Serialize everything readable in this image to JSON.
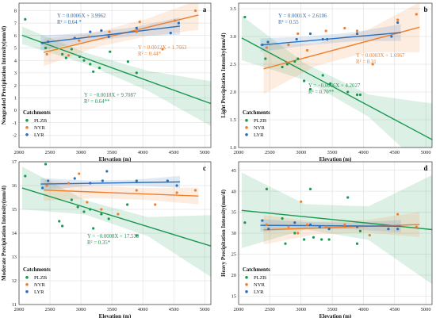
{
  "chart_data": [
    {
      "type": "scatter",
      "panel_label": "a",
      "xlabel": "Elevation (m)",
      "ylabel": "Nongraded Precipitation Intensity(mm/d)",
      "xlim": [
        2000,
        5100
      ],
      "ylim": [
        -3,
        8.6
      ],
      "xticks": [
        2000,
        2500,
        3000,
        3500,
        4000,
        4500,
        5000
      ],
      "yticks": [
        -2,
        -1,
        0,
        1,
        2,
        3,
        4,
        5,
        6,
        7,
        8
      ],
      "grid": true,
      "legend": {
        "title": "Catchments",
        "position": "bottom-left"
      },
      "series": [
        {
          "name": "PLZB",
          "color": "#1a9850",
          "points": [
            [
              2100,
              7.3
            ],
            [
              2430,
              5.0
            ],
            [
              2700,
              4.5
            ],
            [
              2760,
              4.2
            ],
            [
              2850,
              4.9
            ],
            [
              2980,
              4.3
            ],
            [
              3050,
              4.0
            ],
            [
              3150,
              3.7
            ],
            [
              3200,
              3.1
            ],
            [
              3300,
              3.4
            ],
            [
              3470,
              4.7
            ],
            [
              3760,
              3.9
            ],
            [
              3900,
              3.0
            ]
          ],
          "fit": {
            "slope": -0.0018,
            "intercept": 9.7087,
            "x": [
              2050,
              5100
            ],
            "band": [
              0.7,
              0.45,
              0.8,
              1.8
            ]
          },
          "equation": "Y = −0.0018X + 9.7087",
          "r2": "R² = 0.64**"
        },
        {
          "name": "NYR",
          "color": "#f07f2c",
          "points": [
            [
              2450,
              4.5
            ],
            [
              2800,
              4.4
            ],
            [
              2970,
              5.6
            ],
            [
              3130,
              5.9
            ],
            [
              3460,
              6.3
            ],
            [
              3900,
              6.3
            ],
            [
              3950,
              7.1
            ],
            [
              4320,
              4.9
            ],
            [
              4520,
              7.2
            ],
            [
              4850,
              8.0
            ]
          ],
          "fit": {
            "slope": 0.0012,
            "intercept": 1.7663,
            "x": [
              2400,
              4900
            ],
            "band": [
              1.1,
              0.6,
              0.7,
              1.2
            ]
          },
          "equation": "Y = 0.0012X + 1.7663",
          "r2": "R² = 0.44*"
        },
        {
          "name": "LYR",
          "color": "#2c6fbb",
          "points": [
            [
              2380,
              5.4
            ],
            [
              2470,
              5.5
            ],
            [
              2900,
              5.8
            ],
            [
              3150,
              6.3
            ],
            [
              3330,
              6.4
            ],
            [
              3450,
              5.9
            ],
            [
              3900,
              6.6
            ],
            [
              4450,
              6.2
            ],
            [
              4580,
              7.0
            ]
          ],
          "fit": {
            "slope": 0.0006,
            "intercept": 3.9962,
            "x": [
              2350,
              4600
            ],
            "band": [
              0.6,
              0.35,
              0.35,
              0.7
            ]
          },
          "equation": "Y = 0.0006X + 3.9962",
          "r2": "R² = 0.64 *"
        }
      ]
    },
    {
      "type": "scatter",
      "panel_label": "b",
      "xlabel": "Elevation (m)",
      "ylabel": "Light Precipitation Intensity(mm/d)",
      "xlim": [
        2000,
        5100
      ],
      "ylim": [
        1.0,
        3.6
      ],
      "xticks": [
        2000,
        2500,
        3000,
        3500,
        4000,
        4500,
        5000
      ],
      "yticks": [
        1.0,
        1.5,
        2.0,
        2.5,
        3.0,
        3.5
      ],
      "grid": true,
      "legend": {
        "title": "Catchments",
        "position": "bottom-left"
      },
      "series": [
        {
          "name": "PLZB",
          "color": "#1a9850",
          "points": [
            [
              2100,
              3.35
            ],
            [
              2430,
              2.6
            ],
            [
              2700,
              2.45
            ],
            [
              2780,
              2.5
            ],
            [
              2900,
              2.55
            ],
            [
              2950,
              2.6
            ],
            [
              3050,
              2.2
            ],
            [
              3150,
              2.05
            ],
            [
              3350,
              2.3
            ],
            [
              3470,
              2.15
            ],
            [
              3750,
              2.0
            ],
            [
              3900,
              1.95
            ],
            [
              3950,
              1.95
            ]
          ],
          "fit": {
            "slope": -0.0006,
            "intercept": 4.2027,
            "x": [
              2050,
              5100
            ],
            "band": [
              0.4,
              0.15,
              0.2,
              0.65
            ]
          },
          "equation": "Y = −0.0006X + 4.2027",
          "r2": "R² = 0.70**"
        },
        {
          "name": "NYR",
          "color": "#f07f2c",
          "points": [
            [
              2450,
              2.8
            ],
            [
              2800,
              2.85
            ],
            [
              2950,
              3.05
            ],
            [
              3100,
              2.75
            ],
            [
              3400,
              3.1
            ],
            [
              3700,
              3.15
            ],
            [
              3900,
              3.1
            ],
            [
              4150,
              2.5
            ],
            [
              4550,
              3.3
            ],
            [
              4850,
              3.4
            ]
          ],
          "fit": {
            "slope": 0.0003,
            "intercept": 1.6967,
            "x": [
              2400,
              4900
            ],
            "band": [
              0.45,
              0.2,
              0.2,
              0.45
            ]
          },
          "equation": "Y = 0.0003X + 1.6967",
          "r2": "R² = 0.31"
        },
        {
          "name": "LYR",
          "color": "#2c6fbb",
          "points": [
            [
              2380,
              2.85
            ],
            [
              2470,
              2.9
            ],
            [
              2930,
              2.95
            ],
            [
              3150,
              3.05
            ],
            [
              3350,
              2.95
            ],
            [
              3420,
              2.95
            ],
            [
              3900,
              3.05
            ],
            [
              4450,
              3.0
            ],
            [
              4550,
              3.25
            ]
          ],
          "fit": {
            "slope": 0.0001,
            "intercept": 2.6106,
            "x": [
              2350,
              4600
            ],
            "band": [
              0.12,
              0.08,
              0.08,
              0.15
            ]
          },
          "equation": "Y = 0.0001X + 2.6106",
          "r2": "R² = 0.55"
        }
      ]
    },
    {
      "type": "scatter",
      "panel_label": "c",
      "xlabel": "Elevation (m)",
      "ylabel": "Moderate Precipitation Intensity(mm/d)",
      "xlim": [
        2000,
        5100
      ],
      "ylim": [
        11,
        17
      ],
      "xticks": [
        2000,
        2500,
        3000,
        3500,
        4000,
        4500,
        5000
      ],
      "yticks": [
        11,
        12,
        13,
        14,
        15,
        16,
        17
      ],
      "grid": true,
      "legend": {
        "title": "Catchments",
        "position": "bottom-left"
      },
      "series": [
        {
          "name": "PLZB",
          "color": "#1a9850",
          "points": [
            [
              2100,
              16.4
            ],
            [
              2430,
              16.9
            ],
            [
              2650,
              14.5
            ],
            [
              2700,
              14.3
            ],
            [
              2850,
              15.4
            ],
            [
              2950,
              15.1
            ],
            [
              3050,
              14.9
            ],
            [
              3150,
              15.0
            ],
            [
              3200,
              14.2
            ],
            [
              3330,
              14.8
            ],
            [
              3450,
              14.6
            ],
            [
              3750,
              15.2
            ],
            [
              3900,
              13.9
            ]
          ],
          "fit": {
            "slope": -0.0008,
            "intercept": 17.539,
            "x": [
              2050,
              5100
            ],
            "band": [
              0.9,
              0.3,
              0.4,
              1.3
            ]
          },
          "equation": "Y = −0.0008X + 17.539",
          "r2": "R² = 0.35*"
        },
        {
          "name": "NYR",
          "color": "#f07f2c",
          "points": [
            [
              2450,
              16.0
            ],
            [
              2800,
              16.1
            ],
            [
              2970,
              16.5
            ],
            [
              3100,
              15.3
            ],
            [
              3330,
              15.0
            ],
            [
              3600,
              14.8
            ],
            [
              3900,
              15.8
            ],
            [
              4200,
              15.2
            ],
            [
              4550,
              15.7
            ],
            [
              4850,
              15.8
            ]
          ],
          "fit": {
            "slope": -0.0001,
            "intercept": 16.05,
            "x": [
              2400,
              4900
            ],
            "band": [
              0.45,
              0.25,
              0.25,
              0.35
            ]
          }
        },
        {
          "name": "LYR",
          "color": "#2c6fbb",
          "points": [
            [
              2380,
              15.9
            ],
            [
              2470,
              16.2
            ],
            [
              2900,
              16.3
            ],
            [
              3150,
              16.1
            ],
            [
              3350,
              16.2
            ],
            [
              3420,
              16.6
            ],
            [
              3900,
              16.2
            ],
            [
              4400,
              16.2
            ],
            [
              4550,
              16.0
            ]
          ],
          "fit": {
            "slope": 4e-05,
            "intercept": 15.97,
            "x": [
              2350,
              4600
            ],
            "band": [
              0.25,
              0.12,
              0.12,
              0.25
            ]
          }
        }
      ]
    },
    {
      "type": "scatter",
      "panel_label": "d",
      "xlabel": "Elevation (m)",
      "ylabel": "Heavy Precipitation Intensity(mm/d)",
      "xlim": [
        2000,
        5100
      ],
      "ylim": [
        13,
        47
      ],
      "xticks": [
        2000,
        2500,
        3000,
        3500,
        4000,
        4500,
        5000
      ],
      "yticks": [
        15,
        20,
        25,
        30,
        35,
        40,
        45
      ],
      "grid": true,
      "legend": {
        "title": "Catchments",
        "position": "bottom-left"
      },
      "series": [
        {
          "name": "PLZB",
          "color": "#1a9850",
          "points": [
            [
              2100,
              32.5
            ],
            [
              2450,
              40.5
            ],
            [
              2700,
              33.5
            ],
            [
              2750,
              27.5
            ],
            [
              2900,
              30.0
            ],
            [
              3050,
              28.5
            ],
            [
              3150,
              40.5
            ],
            [
              3200,
              29.0
            ],
            [
              3330,
              28.5
            ],
            [
              3450,
              28.5
            ],
            [
              3750,
              38.5
            ],
            [
              3900,
              27.5
            ],
            [
              3950,
              30.5
            ]
          ],
          "fit": {
            "slope": -0.0015,
            "intercept": 38.5,
            "x": [
              2050,
              5100
            ],
            "band": [
              9.0,
              3.0,
              4.0,
              13.0
            ]
          }
        },
        {
          "name": "NYR",
          "color": "#f07f2c",
          "points": [
            [
              2450,
              32.0
            ],
            [
              2800,
              31.5
            ],
            [
              2950,
              30.0
            ],
            [
              3000,
              37.5
            ],
            [
              3100,
              32.0
            ],
            [
              3400,
              31.5
            ],
            [
              3700,
              32.0
            ],
            [
              4100,
              29.5
            ],
            [
              4550,
              34.5
            ],
            [
              4850,
              31.5
            ]
          ],
          "fit": {
            "slope": 0.0005,
            "intercept": 29.6,
            "x": [
              2400,
              4900
            ],
            "band": [
              3.5,
              1.5,
              1.5,
              3.0
            ]
          }
        },
        {
          "name": "LYR",
          "color": "#2c6fbb",
          "points": [
            [
              2380,
              33.0
            ],
            [
              2480,
              31.0
            ],
            [
              2900,
              32.5
            ],
            [
              3150,
              32.0
            ],
            [
              3300,
              31.5
            ],
            [
              3450,
              31.0
            ],
            [
              3900,
              31.5
            ],
            [
              4400,
              31.0
            ],
            [
              4550,
              31.0
            ]
          ],
          "fit": {
            "slope": -0.0001,
            "intercept": 32.1,
            "x": [
              2350,
              4600
            ],
            "band": [
              1.5,
              0.8,
              0.8,
              1.5
            ]
          }
        }
      ]
    }
  ]
}
